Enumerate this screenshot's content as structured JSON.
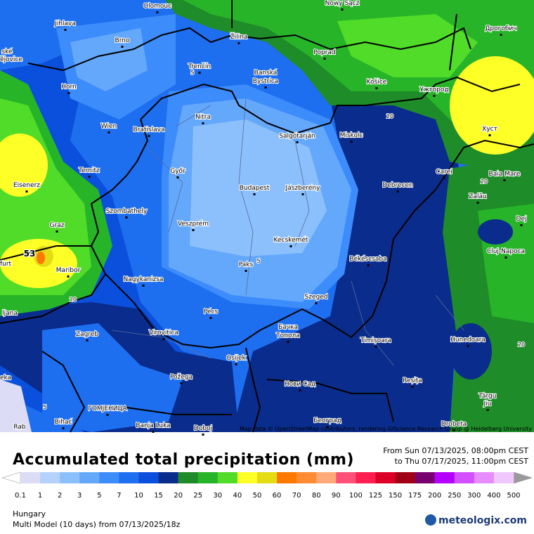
{
  "map": {
    "cities": [
      "Olomouc",
      "Nowy Sącz",
      "Jihlava",
      "Brno",
      "Žilina",
      "Дрогобич",
      "Poprad",
      "Trenčín",
      "Banská",
      "Bystrica",
      "Košice",
      "Ужгород",
      "Horn",
      "Nitra",
      "Wien",
      "Bratislava",
      "Salgótarján",
      "Miskolc",
      "Хуст",
      "Ternitz",
      "Győr",
      "Carei",
      "Baia Mare",
      "Eisenerz",
      "Budapest",
      "Jászberény",
      "Debrecen",
      "Szombathely",
      "Zalău",
      "Dej",
      "Graz",
      "Veszprém",
      "Kecskemét",
      "Cluj-Napoca",
      "Maribor",
      "Paks",
      "Békéscsaba",
      "Nagykanizsa",
      "Szeged",
      "Pécs",
      "Бачка",
      "Топола",
      "Zagreb",
      "Virovitica",
      "Timișoara",
      "Hunedoara",
      "Osijek",
      "Požega",
      "Нови Сад",
      "Reșița",
      "Târgu",
      "Jiu",
      "ГОМЈЕНИЦА",
      "Bihać",
      "Banja Luka",
      "Doboj",
      "Београд",
      "Drobeta",
      "ljana",
      "ské",
      "ějovice",
      "furt",
      "eka",
      "Rab"
    ],
    "contour_labels": [
      "20",
      "20",
      "20",
      "20",
      "5",
      "5",
      "5",
      "53"
    ],
    "attribution": "Map data © OpenStreetMap contributors, rendering GIScience Research Group @ Heidelberg University"
  },
  "legend": {
    "title": "Accumulated total precipitation (mm)",
    "period_from": "From Sun 07/13/2025, 08:00pm CEST",
    "period_to": "to Thu 07/17/2025, 11:00pm CEST",
    "ticks": [
      0.1,
      1,
      2,
      3,
      5,
      7,
      10,
      15,
      20,
      25,
      30,
      40,
      50,
      60,
      70,
      80,
      90,
      100,
      125,
      150,
      175,
      200,
      250,
      300,
      400,
      500
    ],
    "colors": [
      "#dcdcf6",
      "#b4d2fc",
      "#8cc0fc",
      "#64a8fc",
      "#3c8cfc",
      "#1e6ef0",
      "#0a50dc",
      "#0a2c8c",
      "#1e8c28",
      "#28b428",
      "#50dc28",
      "#ffff28",
      "#e6dc14",
      "#ff7800",
      "#ff8c32",
      "#ffaa78",
      "#ff5078",
      "#ff1e50",
      "#dc0028",
      "#a00014",
      "#78006e",
      "#b400ff",
      "#d250ff",
      "#e68cff",
      "#f0c8ff"
    ],
    "under_color": "#ffffff",
    "over_color": "#9a9a9a"
  },
  "footer": {
    "region": "Hungary",
    "model": "Multi Model (10 days) from 07/13/2025/18z",
    "brand": "meteologix.com"
  }
}
